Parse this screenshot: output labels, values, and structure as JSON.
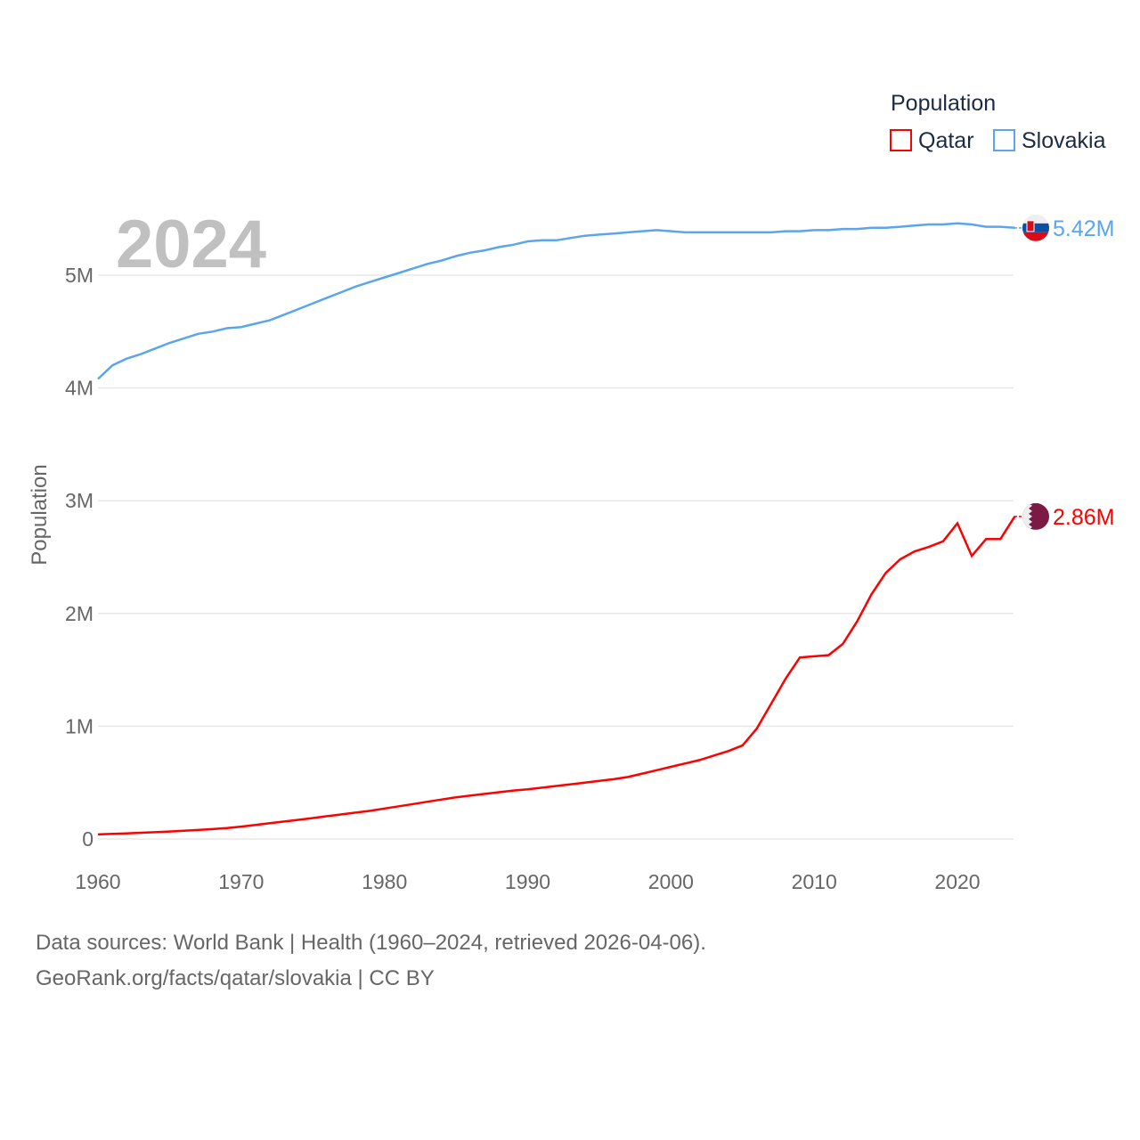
{
  "chart_data": {
    "type": "line",
    "title": "Population",
    "year_label": "2024",
    "xlabel": "",
    "ylabel": "Population",
    "xlim": [
      1960,
      2024
    ],
    "ylim": [
      0,
      5.6
    ],
    "y_unit": "millions",
    "grid": true,
    "legend_position": "top-right",
    "legend_title": "Population",
    "x_ticks": [
      "1960",
      "1970",
      "1980",
      "1990",
      "2000",
      "2010",
      "2020"
    ],
    "y_ticks": [
      {
        "v": 0,
        "label": "0"
      },
      {
        "v": 1,
        "label": "1M"
      },
      {
        "v": 2,
        "label": "2M"
      },
      {
        "v": 3,
        "label": "3M"
      },
      {
        "v": 4,
        "label": "4M"
      },
      {
        "v": 5,
        "label": "5M"
      }
    ],
    "x": [
      1960,
      1961,
      1962,
      1963,
      1964,
      1965,
      1966,
      1967,
      1968,
      1969,
      1970,
      1971,
      1972,
      1973,
      1974,
      1975,
      1976,
      1977,
      1978,
      1979,
      1980,
      1981,
      1982,
      1983,
      1984,
      1985,
      1986,
      1987,
      1988,
      1989,
      1990,
      1991,
      1992,
      1993,
      1994,
      1995,
      1996,
      1997,
      1998,
      1999,
      2000,
      2001,
      2002,
      2003,
      2004,
      2005,
      2006,
      2007,
      2008,
      2009,
      2010,
      2011,
      2012,
      2013,
      2014,
      2015,
      2016,
      2017,
      2018,
      2019,
      2020,
      2021,
      2022,
      2023,
      2024
    ],
    "series": [
      {
        "name": "Qatar",
        "color": "#ff0000",
        "end_label": "2.86M",
        "flag": "qatar-flag",
        "values": [
          0.04,
          0.045,
          0.05,
          0.055,
          0.06,
          0.066,
          0.073,
          0.08,
          0.088,
          0.097,
          0.11,
          0.125,
          0.14,
          0.155,
          0.17,
          0.186,
          0.202,
          0.218,
          0.234,
          0.25,
          0.27,
          0.29,
          0.31,
          0.33,
          0.35,
          0.37,
          0.385,
          0.4,
          0.415,
          0.43,
          0.44,
          0.455,
          0.47,
          0.485,
          0.5,
          0.515,
          0.53,
          0.55,
          0.58,
          0.61,
          0.64,
          0.67,
          0.7,
          0.74,
          0.78,
          0.83,
          0.98,
          1.2,
          1.42,
          1.61,
          1.62,
          1.63,
          1.73,
          1.93,
          2.17,
          2.36,
          2.48,
          2.55,
          2.59,
          2.64,
          2.8,
          2.51,
          2.66,
          2.66,
          2.86
        ]
      },
      {
        "name": "Slovakia",
        "color": "#5aa5ee",
        "end_label": "5.42M",
        "flag": "slovakia-flag",
        "values": [
          4.08,
          4.2,
          4.26,
          4.3,
          4.35,
          4.4,
          4.44,
          4.48,
          4.5,
          4.53,
          4.54,
          4.57,
          4.6,
          4.65,
          4.7,
          4.75,
          4.8,
          4.85,
          4.9,
          4.94,
          4.98,
          5.02,
          5.06,
          5.1,
          5.13,
          5.17,
          5.2,
          5.22,
          5.25,
          5.27,
          5.3,
          5.31,
          5.31,
          5.33,
          5.35,
          5.36,
          5.37,
          5.38,
          5.39,
          5.4,
          5.39,
          5.38,
          5.38,
          5.38,
          5.38,
          5.38,
          5.38,
          5.38,
          5.39,
          5.39,
          5.4,
          5.4,
          5.41,
          5.41,
          5.42,
          5.42,
          5.43,
          5.44,
          5.45,
          5.45,
          5.46,
          5.45,
          5.43,
          5.43,
          5.42
        ]
      }
    ]
  },
  "footer": {
    "line1": "Data sources: World Bank | Health (1960–2024, retrieved 2026-04-06).",
    "line2": "GeoRank.org/facts/qatar/slovakia | CC BY"
  }
}
